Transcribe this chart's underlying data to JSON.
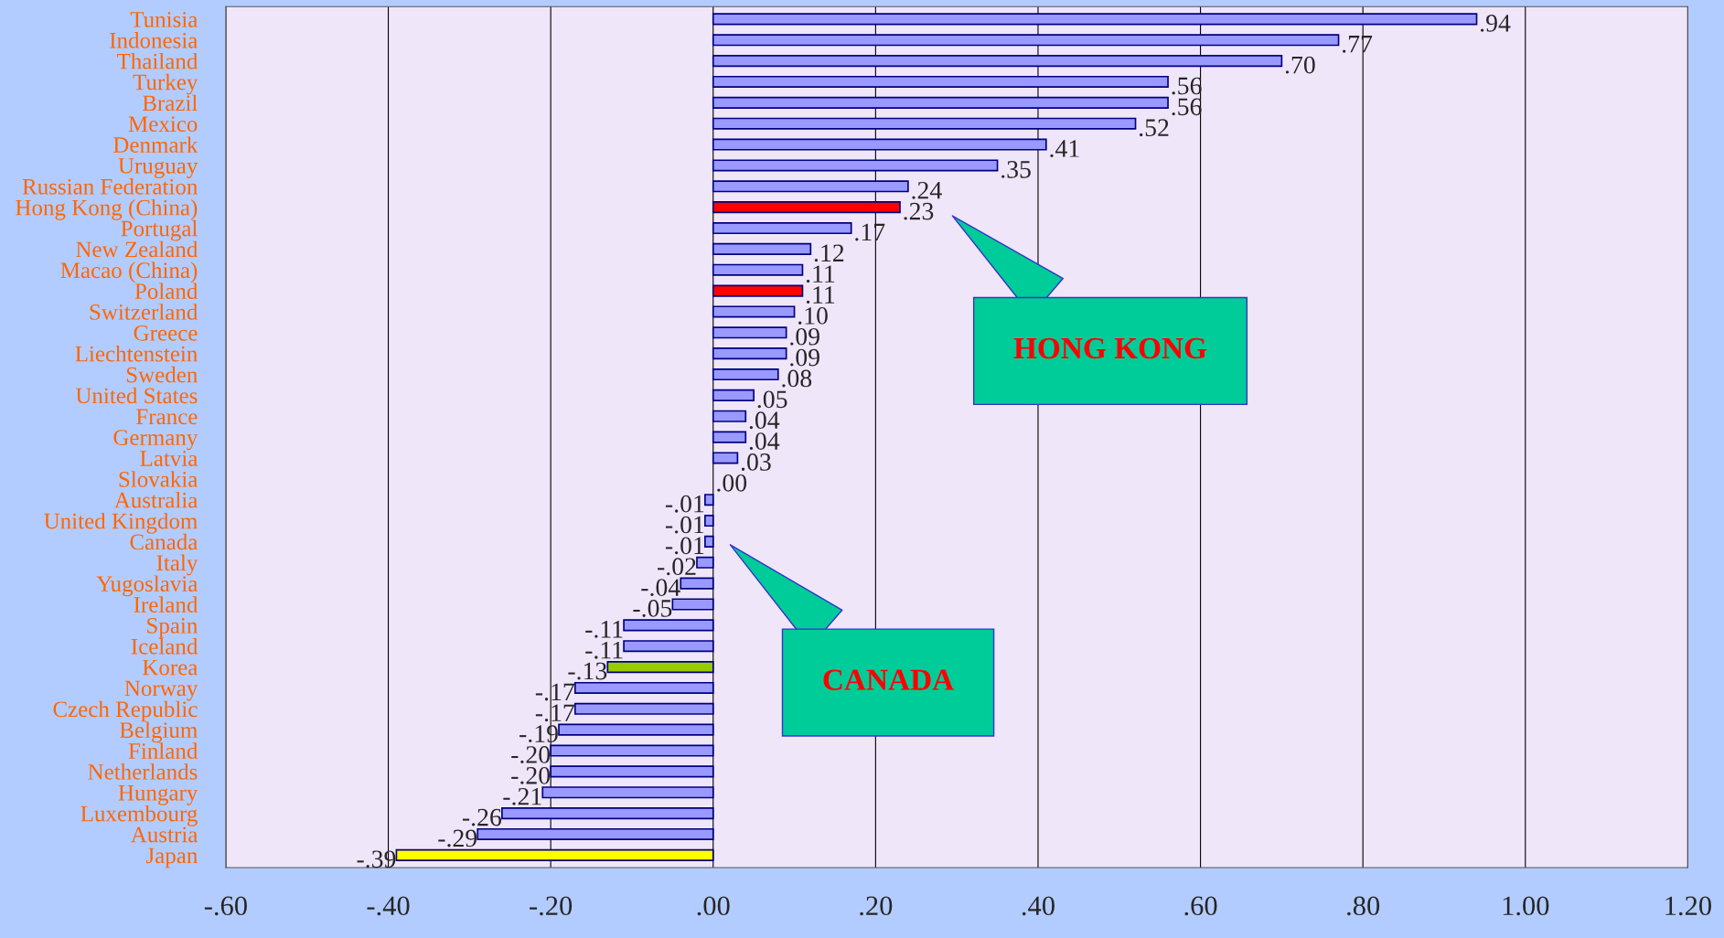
{
  "chart_data": {
    "type": "bar",
    "orientation": "horizontal",
    "categories": [
      "Tunisia",
      "Indonesia",
      "Thailand",
      "Turkey",
      "Brazil",
      "Mexico",
      "Denmark",
      "Uruguay",
      "Russian Federation",
      "Hong Kong (China)",
      "Portugal",
      "New Zealand",
      "Macao (China)",
      "Poland",
      "Switzerland",
      "Greece",
      "Liechtenstein",
      "Sweden",
      "United States",
      "France",
      "Germany",
      "Latvia",
      "Slovakia",
      "Australia",
      "United Kingdom",
      "Canada",
      "Italy",
      "Yugoslavia",
      "Ireland",
      "Spain",
      "Iceland",
      "Korea",
      "Norway",
      "Czech Republic",
      "Belgium",
      "Finland",
      "Netherlands",
      "Hungary",
      "Luxembourg",
      "Austria",
      "Japan"
    ],
    "values": [
      0.94,
      0.77,
      0.7,
      0.56,
      0.56,
      0.52,
      0.41,
      0.35,
      0.24,
      0.23,
      0.17,
      0.12,
      0.11,
      0.11,
      0.1,
      0.09,
      0.09,
      0.08,
      0.05,
      0.04,
      0.04,
      0.03,
      0.0,
      -0.01,
      -0.01,
      -0.01,
      -0.02,
      -0.04,
      -0.05,
      -0.11,
      -0.11,
      -0.13,
      -0.17,
      -0.17,
      -0.19,
      -0.2,
      -0.2,
      -0.21,
      -0.26,
      -0.29,
      -0.39
    ],
    "value_labels": [
      ".94",
      ".77",
      ".70",
      ".56",
      ".56",
      ".52",
      ".41",
      ".35",
      ".24",
      ".23",
      ".17",
      ".12",
      ".11",
      ".11",
      ".10",
      ".09",
      ".09",
      ".08",
      ".05",
      ".04",
      ".04",
      ".03",
      ".00",
      "-.01",
      "-.01",
      "-.01",
      "-.02",
      "-.04",
      "-.05",
      "-.11",
      "-.11",
      "-.13",
      "-.17",
      "-.17",
      "-.19",
      "-.20",
      "-.20",
      "-.21",
      "-.26",
      "-.29",
      "-.39"
    ],
    "colors": [
      "#9999ff",
      "#9999ff",
      "#9999ff",
      "#9999ff",
      "#9999ff",
      "#9999ff",
      "#9999ff",
      "#9999ff",
      "#9999ff",
      "#ff0000",
      "#9999ff",
      "#9999ff",
      "#9999ff",
      "#ff0000",
      "#9999ff",
      "#9999ff",
      "#9999ff",
      "#9999ff",
      "#9999ff",
      "#9999ff",
      "#9999ff",
      "#9999ff",
      "#9999ff",
      "#9999ff",
      "#9999ff",
      "#9999ff",
      "#9999ff",
      "#9999ff",
      "#9999ff",
      "#9999ff",
      "#9999ff",
      "#99cc00",
      "#9999ff",
      "#9999ff",
      "#9999ff",
      "#9999ff",
      "#9999ff",
      "#9999ff",
      "#9999ff",
      "#9999ff",
      "#ffff00"
    ],
    "xlim": [
      -0.6,
      1.2
    ],
    "xticks": [
      {
        "value": -0.6,
        "label": "-.60"
      },
      {
        "value": -0.4,
        "label": "-.40"
      },
      {
        "value": -0.2,
        "label": "-.20"
      },
      {
        "value": 0,
        "label": ".00"
      },
      {
        "value": 0.2,
        "label": ".20"
      },
      {
        "value": 0.4,
        "label": ".40"
      },
      {
        "value": 0.6,
        "label": ".60"
      },
      {
        "value": 0.8,
        "label": ".80"
      },
      {
        "value": 1.0,
        "label": "1.00"
      },
      {
        "value": 1.2,
        "label": "1.20"
      }
    ],
    "grid": "x",
    "annotations": [
      "HONG KONG",
      "CANADA"
    ]
  }
}
